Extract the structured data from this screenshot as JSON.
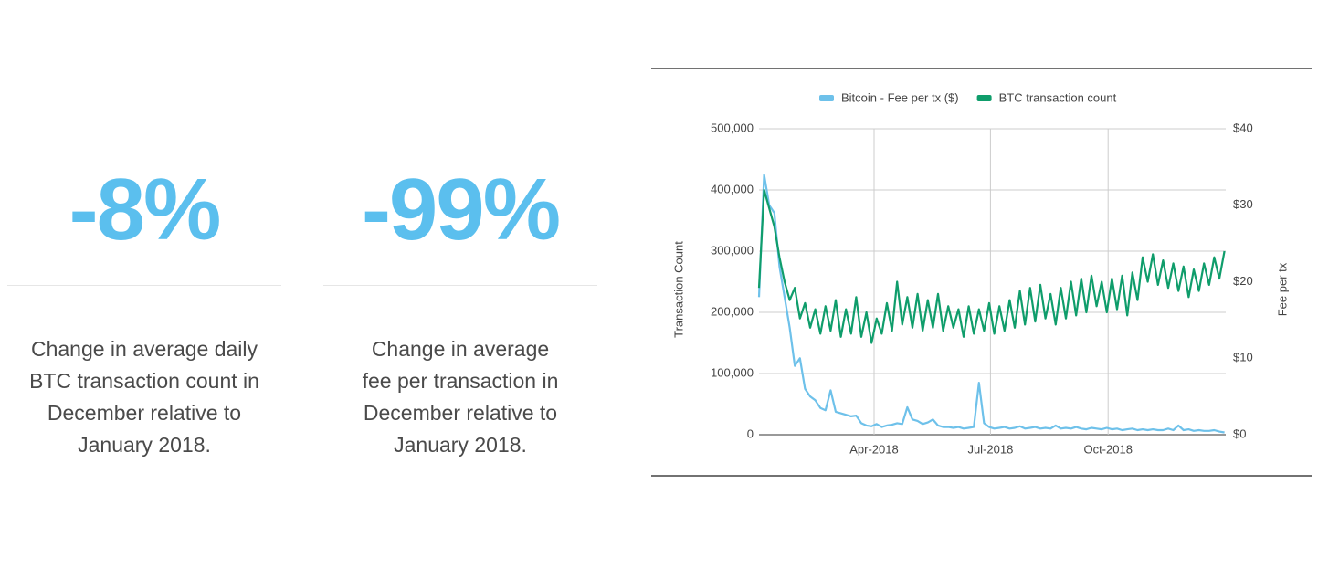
{
  "stats": [
    {
      "value": "-8%",
      "caption": "Change in average daily BTC transaction count in December relative to January 2018."
    },
    {
      "value": "-99%",
      "caption": "Change in average fee per transaction in December relative to January 2018."
    }
  ],
  "chart_data": {
    "type": "line",
    "y_label": "Transaction Count",
    "y2_label": "Fee per tx",
    "x": [
      0,
      4,
      8,
      12,
      16,
      20,
      24,
      28,
      32,
      36,
      40,
      44,
      48,
      52,
      56,
      60,
      64,
      68,
      72,
      76,
      80,
      84,
      88,
      92,
      96,
      100,
      104,
      108,
      112,
      116,
      120,
      124,
      128,
      132,
      136,
      140,
      144,
      148,
      152,
      156,
      160,
      164,
      168,
      172,
      176,
      180,
      184,
      188,
      192,
      196,
      200,
      204,
      208,
      212,
      216,
      220,
      224,
      228,
      232,
      236,
      240,
      244,
      248,
      252,
      256,
      260,
      264,
      268,
      272,
      276,
      280,
      284,
      288,
      292,
      296,
      300,
      304,
      308,
      312,
      316,
      320,
      324,
      328,
      332,
      336,
      340,
      344,
      348,
      352,
      356,
      360,
      364
    ],
    "xlim": [
      0,
      365
    ],
    "xticks": [
      {
        "value": 90,
        "label": "Apr-2018"
      },
      {
        "value": 181,
        "label": "Jul-2018"
      },
      {
        "value": 273,
        "label": "Oct-2018"
      }
    ],
    "ylim": [
      0,
      500000
    ],
    "yticks": [
      0,
      {
        "value": 100000,
        "label": "100,000"
      },
      {
        "value": 200000,
        "label": "200,000"
      },
      {
        "value": 300000,
        "label": "300,000"
      },
      {
        "value": 400000,
        "label": "400,000"
      },
      {
        "value": 500000,
        "label": "500,000"
      }
    ],
    "y2lim": [
      0,
      40
    ],
    "y2ticks": [
      {
        "value": 0,
        "label": "$0"
      },
      {
        "value": 10,
        "label": "$10"
      },
      {
        "value": 20,
        "label": "$20"
      },
      {
        "value": 30,
        "label": "$30"
      },
      {
        "value": 40,
        "label": "$40"
      }
    ],
    "grid": true,
    "legend": "top",
    "series": [
      {
        "name": "Bitcoin - Fee per tx ($)",
        "color": "#6ec1ea",
        "axis": "y2",
        "values": [
          18,
          34,
          30,
          29,
          22,
          18,
          14,
          9,
          10,
          6,
          5,
          4.5,
          3.5,
          3.2,
          5.8,
          3,
          2.8,
          2.6,
          2.4,
          2.5,
          1.5,
          1.2,
          1.1,
          1.4,
          1.0,
          1.2,
          1.3,
          1.5,
          1.4,
          3.6,
          2.0,
          1.8,
          1.4,
          1.6,
          2.0,
          1.2,
          1.0,
          1.0,
          0.9,
          1.0,
          0.8,
          0.9,
          1.0,
          6.8,
          1.5,
          1.0,
          0.8,
          0.9,
          1.0,
          0.8,
          0.9,
          1.1,
          0.8,
          0.9,
          1.0,
          0.8,
          0.9,
          0.8,
          1.2,
          0.8,
          0.9,
          0.8,
          1.0,
          0.8,
          0.7,
          0.9,
          0.8,
          0.7,
          0.9,
          0.7,
          0.8,
          0.6,
          0.7,
          0.8,
          0.6,
          0.7,
          0.6,
          0.7,
          0.6,
          0.6,
          0.8,
          0.6,
          1.2,
          0.6,
          0.7,
          0.5,
          0.6,
          0.5,
          0.5,
          0.6,
          0.4,
          0.3
        ]
      },
      {
        "name": "BTC transaction count",
        "color": "#0f9d6b",
        "values": [
          240000,
          400000,
          370000,
          340000,
          290000,
          250000,
          220000,
          240000,
          190000,
          215000,
          175000,
          205000,
          165000,
          210000,
          170000,
          220000,
          160000,
          205000,
          165000,
          225000,
          160000,
          200000,
          150000,
          190000,
          165000,
          215000,
          170000,
          250000,
          180000,
          225000,
          175000,
          230000,
          170000,
          220000,
          175000,
          230000,
          170000,
          210000,
          175000,
          205000,
          160000,
          210000,
          165000,
          205000,
          170000,
          215000,
          165000,
          210000,
          170000,
          220000,
          175000,
          235000,
          180000,
          240000,
          185000,
          245000,
          190000,
          230000,
          180000,
          240000,
          190000,
          250000,
          195000,
          255000,
          200000,
          260000,
          210000,
          250000,
          200000,
          255000,
          205000,
          260000,
          195000,
          265000,
          220000,
          290000,
          250000,
          295000,
          245000,
          285000,
          240000,
          280000,
          235000,
          275000,
          225000,
          270000,
          235000,
          280000,
          245000,
          290000,
          255000,
          300000
        ]
      }
    ]
  }
}
